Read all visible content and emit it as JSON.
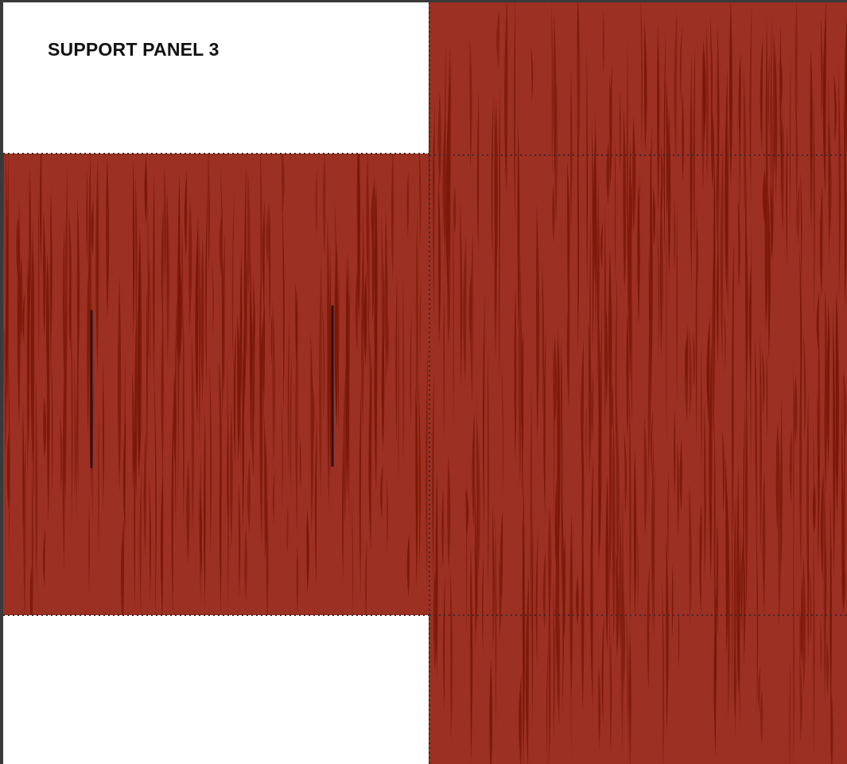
{
  "panel": {
    "title": "SUPPORT PANEL 3"
  },
  "colors": {
    "wood_base": "#9c3023",
    "wood_grain": "#7a1808",
    "fold_line": "#3a2a2a",
    "slot": "#2a1414",
    "blank": "#ffffff"
  }
}
